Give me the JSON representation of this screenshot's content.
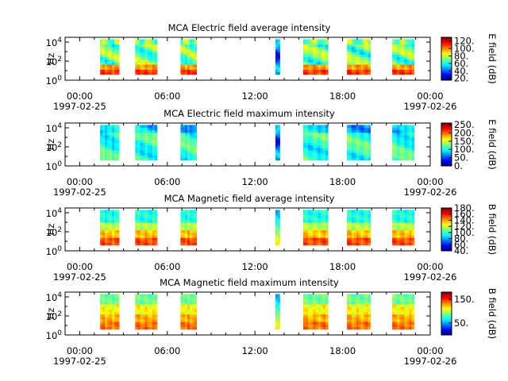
{
  "chart_data": [
    {
      "type": "heatmap",
      "title": "MCA  Electric field average intensity",
      "ylabel": "Hz",
      "yticks": [
        "10^4",
        "10^2",
        "10^0"
      ],
      "xticks": [
        "00:00",
        "06:00",
        "12:00",
        "18:00",
        "00:00"
      ],
      "xdates": [
        "1997-02-25",
        "1997-02-26"
      ],
      "x_range_hours": [
        -1,
        24
      ],
      "y_range_log10": [
        0,
        4.5
      ],
      "colorbar": {
        "label": "E field (dB)",
        "ticks": [
          120,
          100,
          80,
          60,
          40,
          20
        ],
        "tick_labels": [
          "120.",
          "100.",
          "80.",
          "60.",
          "40.",
          "20."
        ],
        "range": [
          15,
          130
        ]
      },
      "segments_hours": [
        [
          1.4,
          2.7
        ],
        [
          3.8,
          5.3
        ],
        [
          6.9,
          8.0
        ],
        [
          13.4,
          13.7
        ],
        [
          15.3,
          17.0
        ],
        [
          18.3,
          19.9
        ],
        [
          21.4,
          22.9
        ]
      ]
    },
    {
      "type": "heatmap",
      "title": "MCA  Electric field maximum intensity",
      "ylabel": "Hz",
      "yticks": [
        "10^4",
        "10^2",
        "10^0"
      ],
      "xticks": [
        "00:00",
        "06:00",
        "12:00",
        "18:00",
        "00:00"
      ],
      "xdates": [
        "1997-02-25",
        "1997-02-26"
      ],
      "x_range_hours": [
        -1,
        24
      ],
      "y_range_log10": [
        0,
        4.5
      ],
      "colorbar": {
        "label": "E field (dB)",
        "ticks": [
          250,
          200,
          150,
          100,
          50,
          0
        ],
        "tick_labels": [
          "250.",
          "200.",
          "150.",
          "100.",
          "50.",
          "0."
        ],
        "range": [
          0,
          260
        ]
      },
      "segments_hours": [
        [
          1.4,
          2.7
        ],
        [
          3.8,
          5.3
        ],
        [
          6.9,
          8.0
        ],
        [
          13.4,
          13.7
        ],
        [
          15.3,
          17.0
        ],
        [
          18.3,
          19.9
        ],
        [
          21.4,
          22.9
        ]
      ]
    },
    {
      "type": "heatmap",
      "title": "MCA  Magnetic field average intensity",
      "ylabel": "Hz",
      "yticks": [
        "10^4",
        "10^2",
        "10^0"
      ],
      "xticks": [
        "00:00",
        "06:00",
        "12:00",
        "18:00",
        "00:00"
      ],
      "xdates": [
        "1997-02-25",
        "1997-02-26"
      ],
      "x_range_hours": [
        -1,
        24
      ],
      "y_range_log10": [
        0,
        4.5
      ],
      "colorbar": {
        "label": "B field (dB)",
        "ticks": [
          180,
          160,
          140,
          120,
          100,
          80,
          60,
          40
        ],
        "tick_labels": [
          "180.",
          "160.",
          "140.",
          "120.",
          "100.",
          "80.",
          "60.",
          "40."
        ],
        "range": [
          40,
          180
        ]
      },
      "segments_hours": [
        [
          1.4,
          2.7
        ],
        [
          3.8,
          5.3
        ],
        [
          6.9,
          8.0
        ],
        [
          13.4,
          13.7
        ],
        [
          15.3,
          17.0
        ],
        [
          18.3,
          19.9
        ],
        [
          21.4,
          22.9
        ]
      ]
    },
    {
      "type": "heatmap",
      "title": "MCA  Magnetic field maximum intensity",
      "ylabel": "Hz",
      "yticks": [
        "10^4",
        "10^2",
        "10^0"
      ],
      "xticks": [
        "00:00",
        "06:00",
        "12:00",
        "18:00",
        "00:00"
      ],
      "xdates": [
        "1997-02-25",
        "1997-02-26"
      ],
      "x_range_hours": [
        -1,
        24
      ],
      "y_range_log10": [
        0,
        4.5
      ],
      "colorbar": {
        "label": "B field (dB)",
        "ticks": [
          150,
          50
        ],
        "tick_labels": [
          "150.",
          "50."
        ],
        "range": [
          0,
          180
        ]
      },
      "segments_hours": [
        [
          1.4,
          2.7
        ],
        [
          3.8,
          5.3
        ],
        [
          6.9,
          8.0
        ],
        [
          13.4,
          13.7
        ],
        [
          15.3,
          17.0
        ],
        [
          18.3,
          19.9
        ],
        [
          21.4,
          22.9
        ]
      ]
    }
  ]
}
